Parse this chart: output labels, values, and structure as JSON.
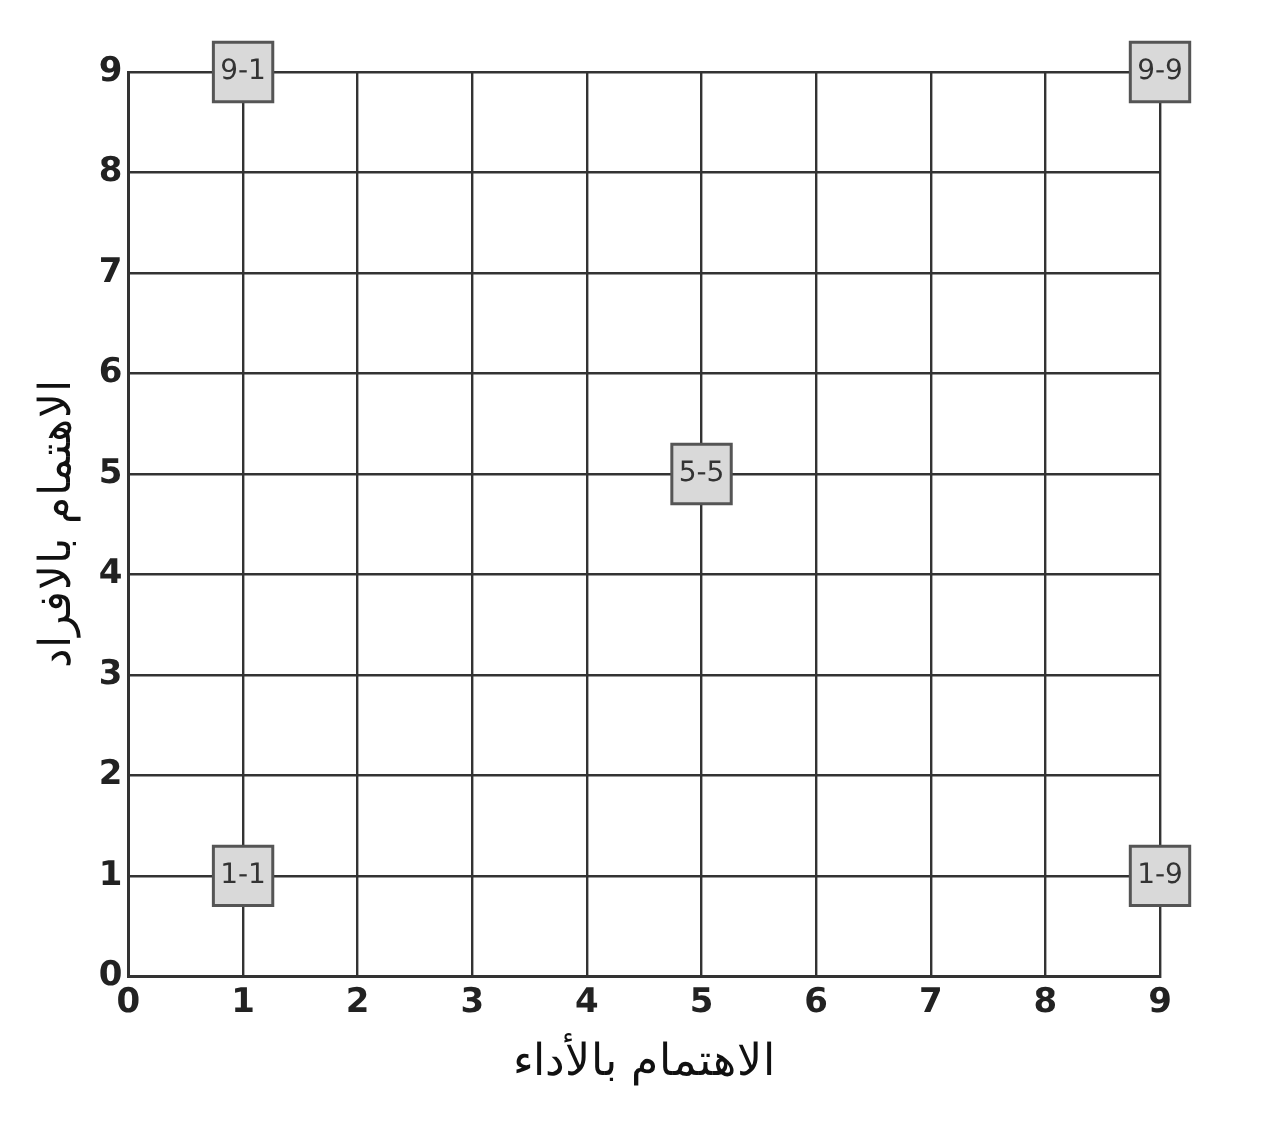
{
  "chart_data": {
    "type": "scatter",
    "xlabel": "الاهتمام بالأداء",
    "ylabel": "الاهتمام بالافراد",
    "xlim": [
      0,
      9
    ],
    "ylim": [
      0,
      9
    ],
    "xticks": [
      0,
      1,
      2,
      3,
      4,
      5,
      6,
      7,
      8,
      9
    ],
    "yticks": [
      0,
      1,
      2,
      3,
      4,
      5,
      6,
      7,
      8,
      9
    ],
    "grid": true,
    "marker": "square",
    "series": [
      {
        "color": "#d9d9d9",
        "x": [
          1,
          9,
          5,
          1,
          9
        ],
        "values": [
          9,
          9,
          5,
          1,
          1
        ],
        "value_labels": [
          "9-1",
          "9-9",
          "5-5",
          "1-1",
          "1-9"
        ]
      }
    ]
  }
}
